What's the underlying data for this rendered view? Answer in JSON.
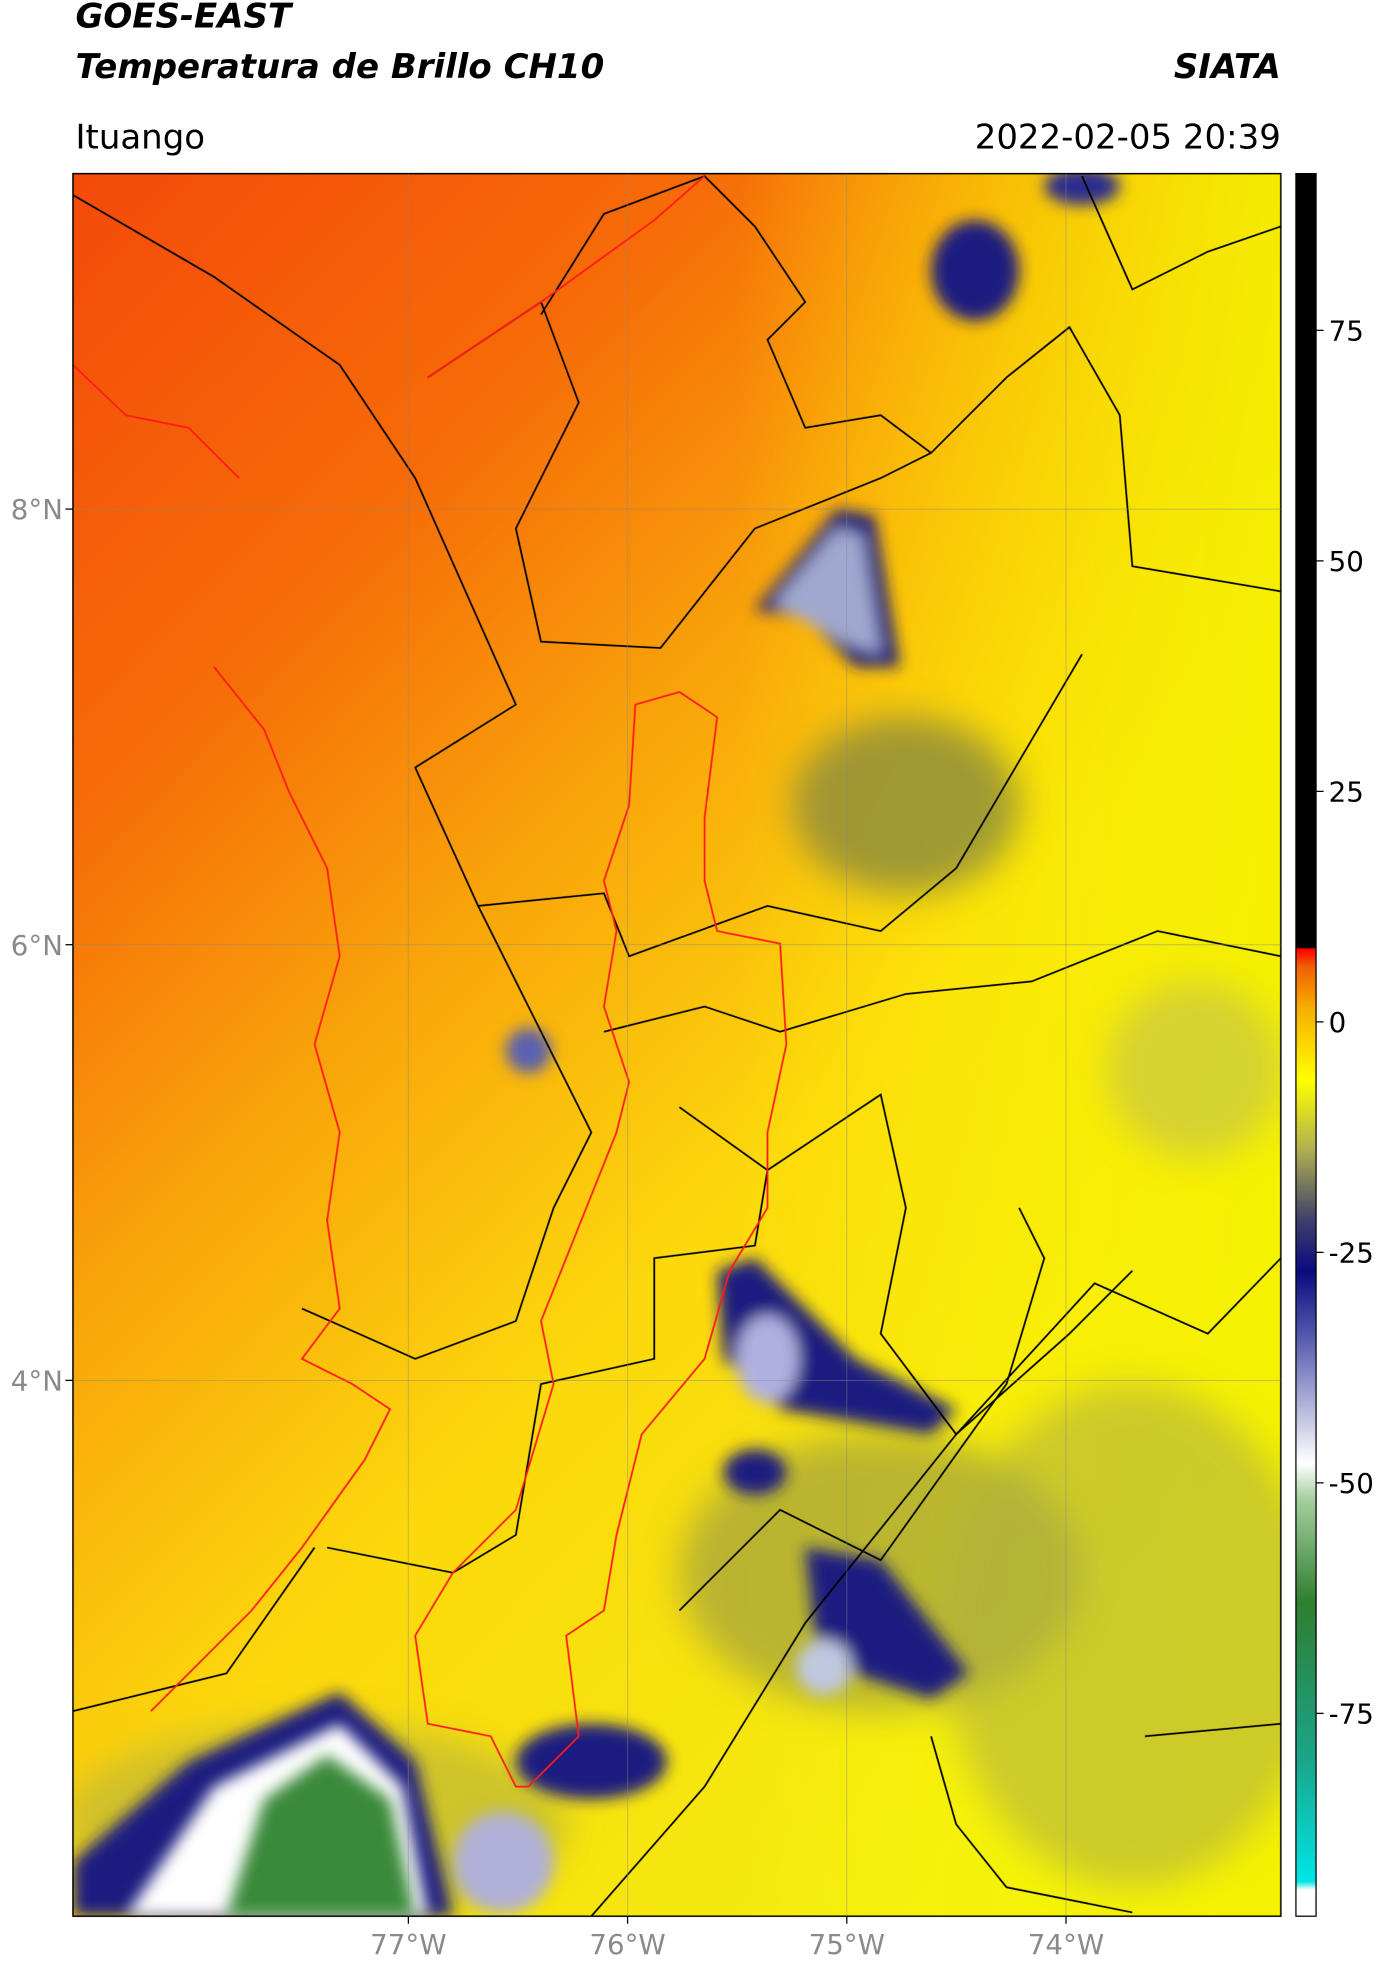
{
  "header": {
    "title": "GOES-EAST",
    "subtitle": "Temperatura de Brillo CH10",
    "source": "SIATA",
    "location": "Ituango",
    "datetime": "2022-02-05 20:39"
  },
  "map": {
    "lon_range": [
      -78.53,
      -73.02
    ],
    "lat_range": [
      1.54,
      9.54
    ],
    "lon_ticks": [
      {
        "value": -77,
        "label": "77°W"
      },
      {
        "value": -76,
        "label": "76°W"
      },
      {
        "value": -75,
        "label": "75°W"
      },
      {
        "value": -74,
        "label": "74°W"
      }
    ],
    "lat_ticks": [
      {
        "value": 8,
        "label": "8°N"
      },
      {
        "value": 6,
        "label": "6°N"
      },
      {
        "value": 4,
        "label": "4°N"
      }
    ]
  },
  "colorbar": {
    "range": [
      -97,
      92
    ],
    "ticks": [
      75,
      50,
      25,
      0,
      -25,
      -50,
      -75
    ]
  }
}
